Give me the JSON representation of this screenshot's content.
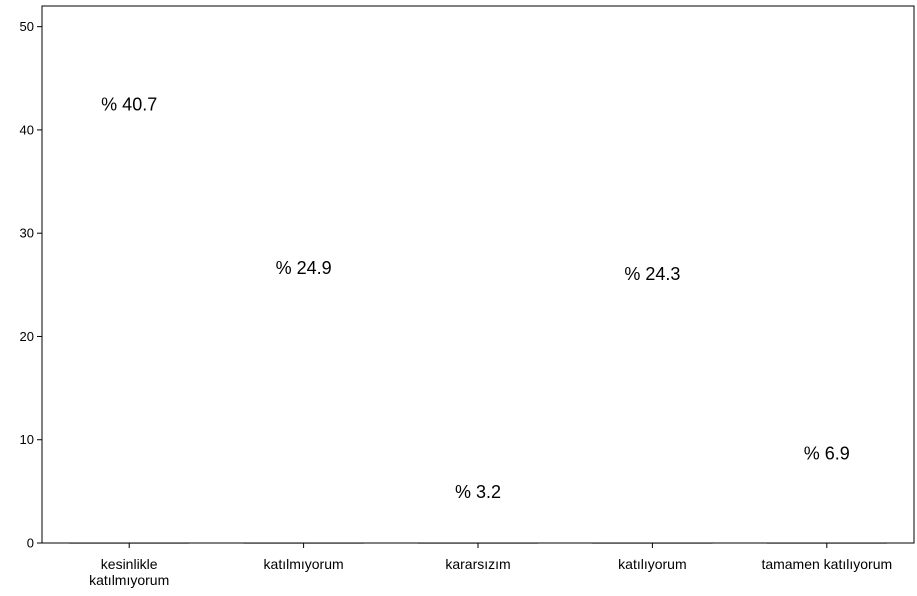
{
  "chart_data": {
    "type": "bar",
    "categories": [
      "kesinlikle katılmıyorum",
      "katılmıyorum",
      "kararsızım",
      "katılıyorum",
      "tamamen katılıyorum"
    ],
    "category_lines": [
      [
        "kesinlikle",
        "katılmıyorum"
      ],
      [
        "katılmıyorum"
      ],
      [
        "kararsızım"
      ],
      [
        "katılıyorum"
      ],
      [
        "tamamen katılıyorum"
      ]
    ],
    "values": [
      40.7,
      24.9,
      3.2,
      24.3,
      6.9
    ],
    "data_labels": [
      "% 40.7",
      "% 24.9",
      "% 3.2",
      "% 24.3",
      "% 6.9"
    ],
    "title": "",
    "xlabel": "",
    "ylabel": "",
    "ylim": [
      0,
      52
    ],
    "yticks": [
      0,
      10,
      20,
      30,
      40,
      50
    ],
    "ytick_labels": [
      "0",
      "10",
      "20",
      "30",
      "40",
      "50"
    ],
    "grid": true,
    "legend": "none",
    "colors": {
      "bar_fill": "#5F5FFF",
      "bar_stroke": "#000000",
      "grid": "#000000",
      "background": "#FFFFFF"
    }
  }
}
